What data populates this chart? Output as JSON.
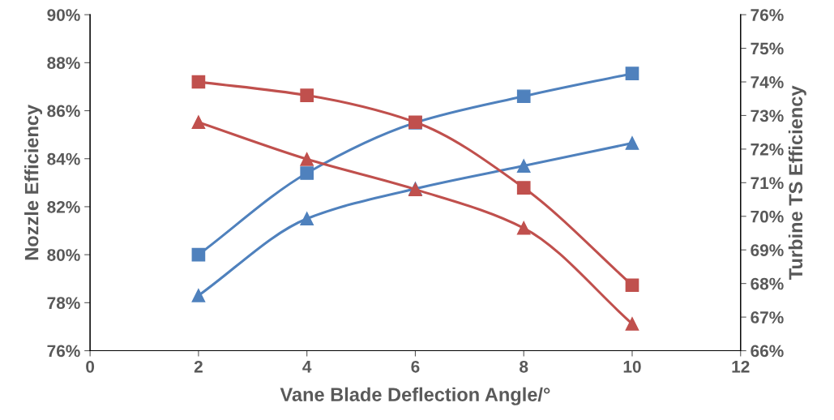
{
  "chart_data": {
    "type": "line",
    "xlabel": "Vane Blade Deflection Angle/°",
    "ylabel": "Nozzle Efficiency",
    "y2label": "Turbine TS Efficiency",
    "x": [
      2,
      4,
      6,
      8,
      10
    ],
    "series": [
      {
        "color": "#4f81bd",
        "marker": "square",
        "values": [
          80.0,
          83.4,
          85.5,
          86.6,
          87.55
        ]
      },
      {
        "color": "#4f81bd",
        "marker": "triangle",
        "values": [
          78.3,
          81.5,
          82.75,
          83.7,
          84.65
        ]
      },
      {
        "color": "#c0504d",
        "marker": "square",
        "axis": "y2",
        "values": [
          74.0,
          73.6,
          72.8,
          70.85,
          67.95
        ]
      },
      {
        "color": "#c0504d",
        "marker": "triangle",
        "axis": "y2",
        "values": [
          72.8,
          71.7,
          70.8,
          69.65,
          66.8
        ]
      }
    ],
    "xlim": [
      0,
      12
    ],
    "xticks": [
      0,
      2,
      4,
      6,
      8,
      10,
      12
    ],
    "ylim": [
      76,
      90
    ],
    "yticks": [
      {
        "value": 76,
        "label": "76%"
      },
      {
        "value": 78,
        "label": "78%"
      },
      {
        "value": 80,
        "label": "80%"
      },
      {
        "value": 82,
        "label": "82%"
      },
      {
        "value": 84,
        "label": "84%"
      },
      {
        "value": 86,
        "label": "86%"
      },
      {
        "value": 88,
        "label": "88%"
      },
      {
        "value": 90,
        "label": "90%"
      }
    ],
    "y2lim": [
      66,
      76
    ],
    "y2ticks": [
      {
        "value": 66,
        "label": "66%"
      },
      {
        "value": 67,
        "label": "67%"
      },
      {
        "value": 68,
        "label": "68%"
      },
      {
        "value": 69,
        "label": "69%"
      },
      {
        "value": 70,
        "label": "70%"
      },
      {
        "value": 71,
        "label": "71%"
      },
      {
        "value": 72,
        "label": "72%"
      },
      {
        "value": 73,
        "label": "73%"
      },
      {
        "value": 74,
        "label": "74%"
      },
      {
        "value": 75,
        "label": "75%"
      },
      {
        "value": 76,
        "label": "76%"
      }
    ],
    "grid": false,
    "line_style": "solid"
  }
}
